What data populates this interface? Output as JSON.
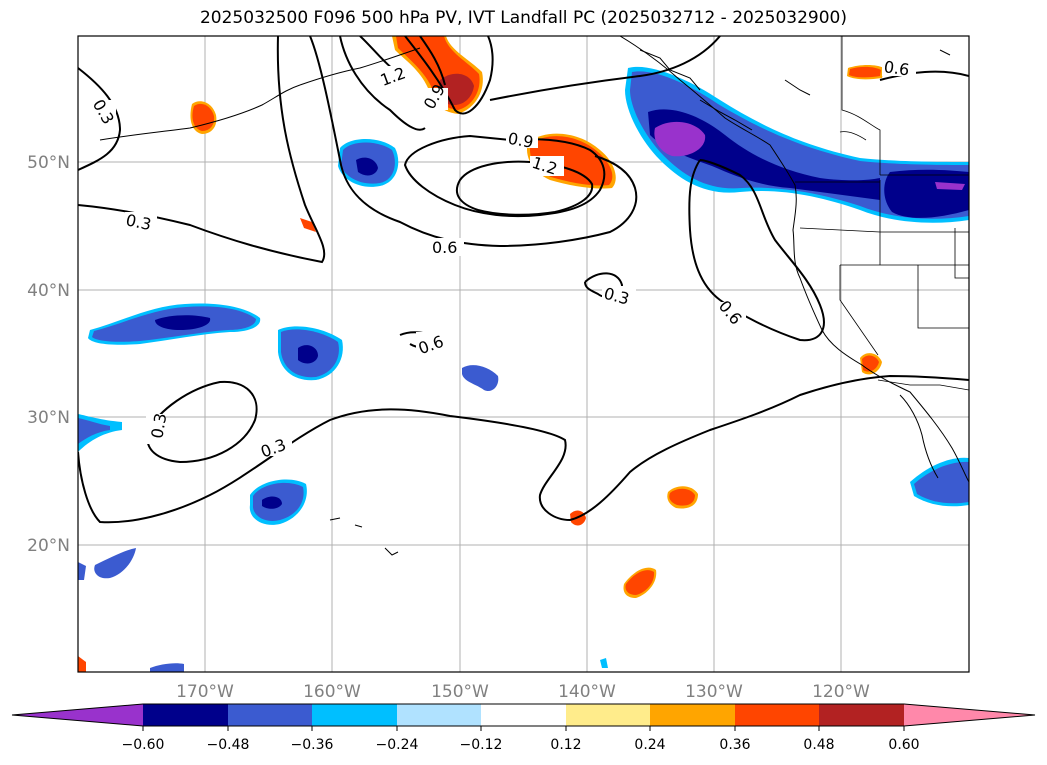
{
  "title": "2025032500 F096 500 hPa PV, IVT Landfall PC (2025032712 - 2025032900)",
  "lat_labels": [
    "50°N",
    "40°N",
    "30°N",
    "20°N"
  ],
  "lon_labels": [
    "170°W",
    "160°W",
    "150°W",
    "140°W",
    "130°W",
    "120°W"
  ],
  "colorbar": {
    "ticks": [
      "−0.60",
      "−0.48",
      "−0.36",
      "−0.24",
      "−0.12",
      "0.12",
      "0.24",
      "0.36",
      "0.48",
      "0.60"
    ],
    "colors": [
      "#9932cc",
      "#00008b",
      "#3b5bd0",
      "#00bfff",
      "#b0e2ff",
      "#ffffff",
      "#ffec8b",
      "#ffa500",
      "#ff4500",
      "#b22222",
      "#ff88aa"
    ]
  },
  "contour_labels": {
    "c1": "0.3",
    "c2": "0.3",
    "c3": "1.2",
    "c4": "0.9",
    "c5": "0.9",
    "c6": "1.2",
    "c7": "0.6",
    "c8": "0.3",
    "c9": "0.6",
    "c10": "0.6",
    "c11": "0.3",
    "c12": "0.3",
    "c13": "0.6"
  }
}
